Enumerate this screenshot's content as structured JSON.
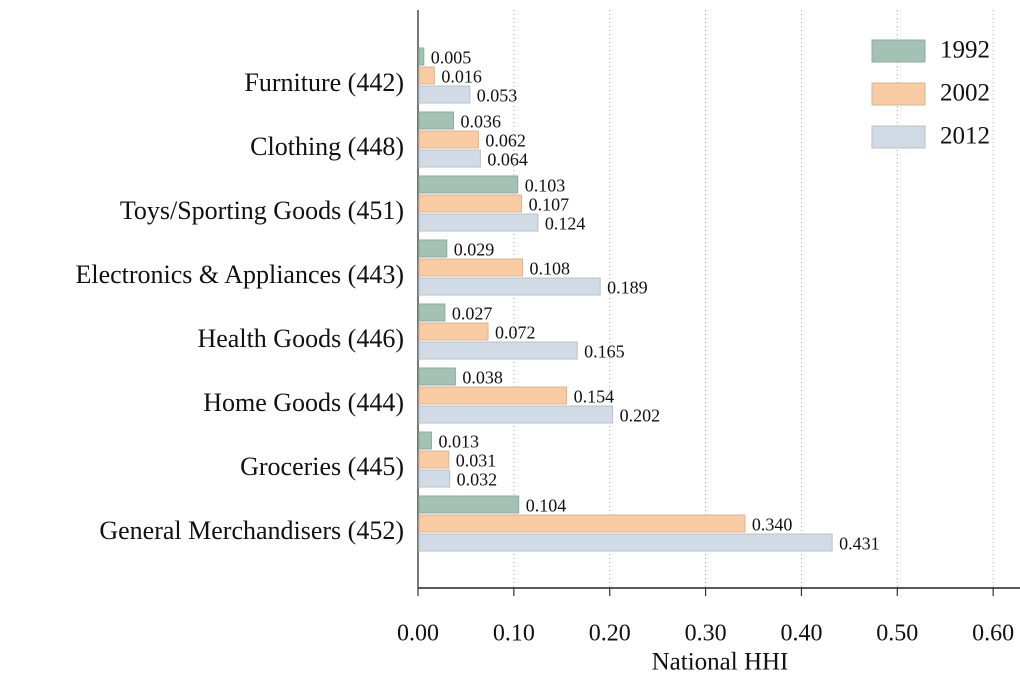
{
  "chart_data": {
    "type": "hbar",
    "categories": [
      "Furniture (442)",
      "Clothing (448)",
      "Toys/Sporting Goods (451)",
      "Electronics & Appliances (443)",
      "Health Goods (446)",
      "Home Goods (444)",
      "Groceries (445)",
      "General Merchandisers (452)"
    ],
    "series": [
      {
        "name": "1992",
        "color": "#a3c2b5",
        "values": [
          0.005,
          0.036,
          0.103,
          0.029,
          0.027,
          0.038,
          0.013,
          0.104
        ],
        "value_labels": [
          "0.005",
          "0.036",
          "0.103",
          "0.029",
          "0.027",
          "0.038",
          "0.013",
          "0.104"
        ]
      },
      {
        "name": "2002",
        "color": "#f8cba3",
        "values": [
          0.016,
          0.062,
          0.107,
          0.108,
          0.072,
          0.154,
          0.031,
          0.34
        ],
        "value_labels": [
          "0.016",
          "0.062",
          "0.107",
          "0.108",
          "0.072",
          "0.154",
          "0.031",
          "0.340"
        ]
      },
      {
        "name": "2012",
        "color": "#d0dbe5",
        "values": [
          0.053,
          0.064,
          0.124,
          0.189,
          0.165,
          0.202,
          0.032,
          0.431
        ],
        "value_labels": [
          "0.053",
          "0.064",
          "0.124",
          "0.189",
          "0.165",
          "0.202",
          "0.032",
          "0.431"
        ]
      }
    ],
    "xlabel": "National HHI",
    "xlim": [
      0,
      0.628
    ],
    "xticks": [
      {
        "value": 0,
        "label": "0.00"
      },
      {
        "value": 0.1,
        "label": "0.10"
      },
      {
        "value": 0.2,
        "label": "0.20"
      },
      {
        "value": 0.3,
        "label": "0.30"
      },
      {
        "value": 0.4,
        "label": "0.40"
      },
      {
        "value": 0.5,
        "label": "0.50"
      },
      {
        "value": 0.6,
        "label": "0.60"
      }
    ],
    "grid": true,
    "legend": "upper right"
  }
}
